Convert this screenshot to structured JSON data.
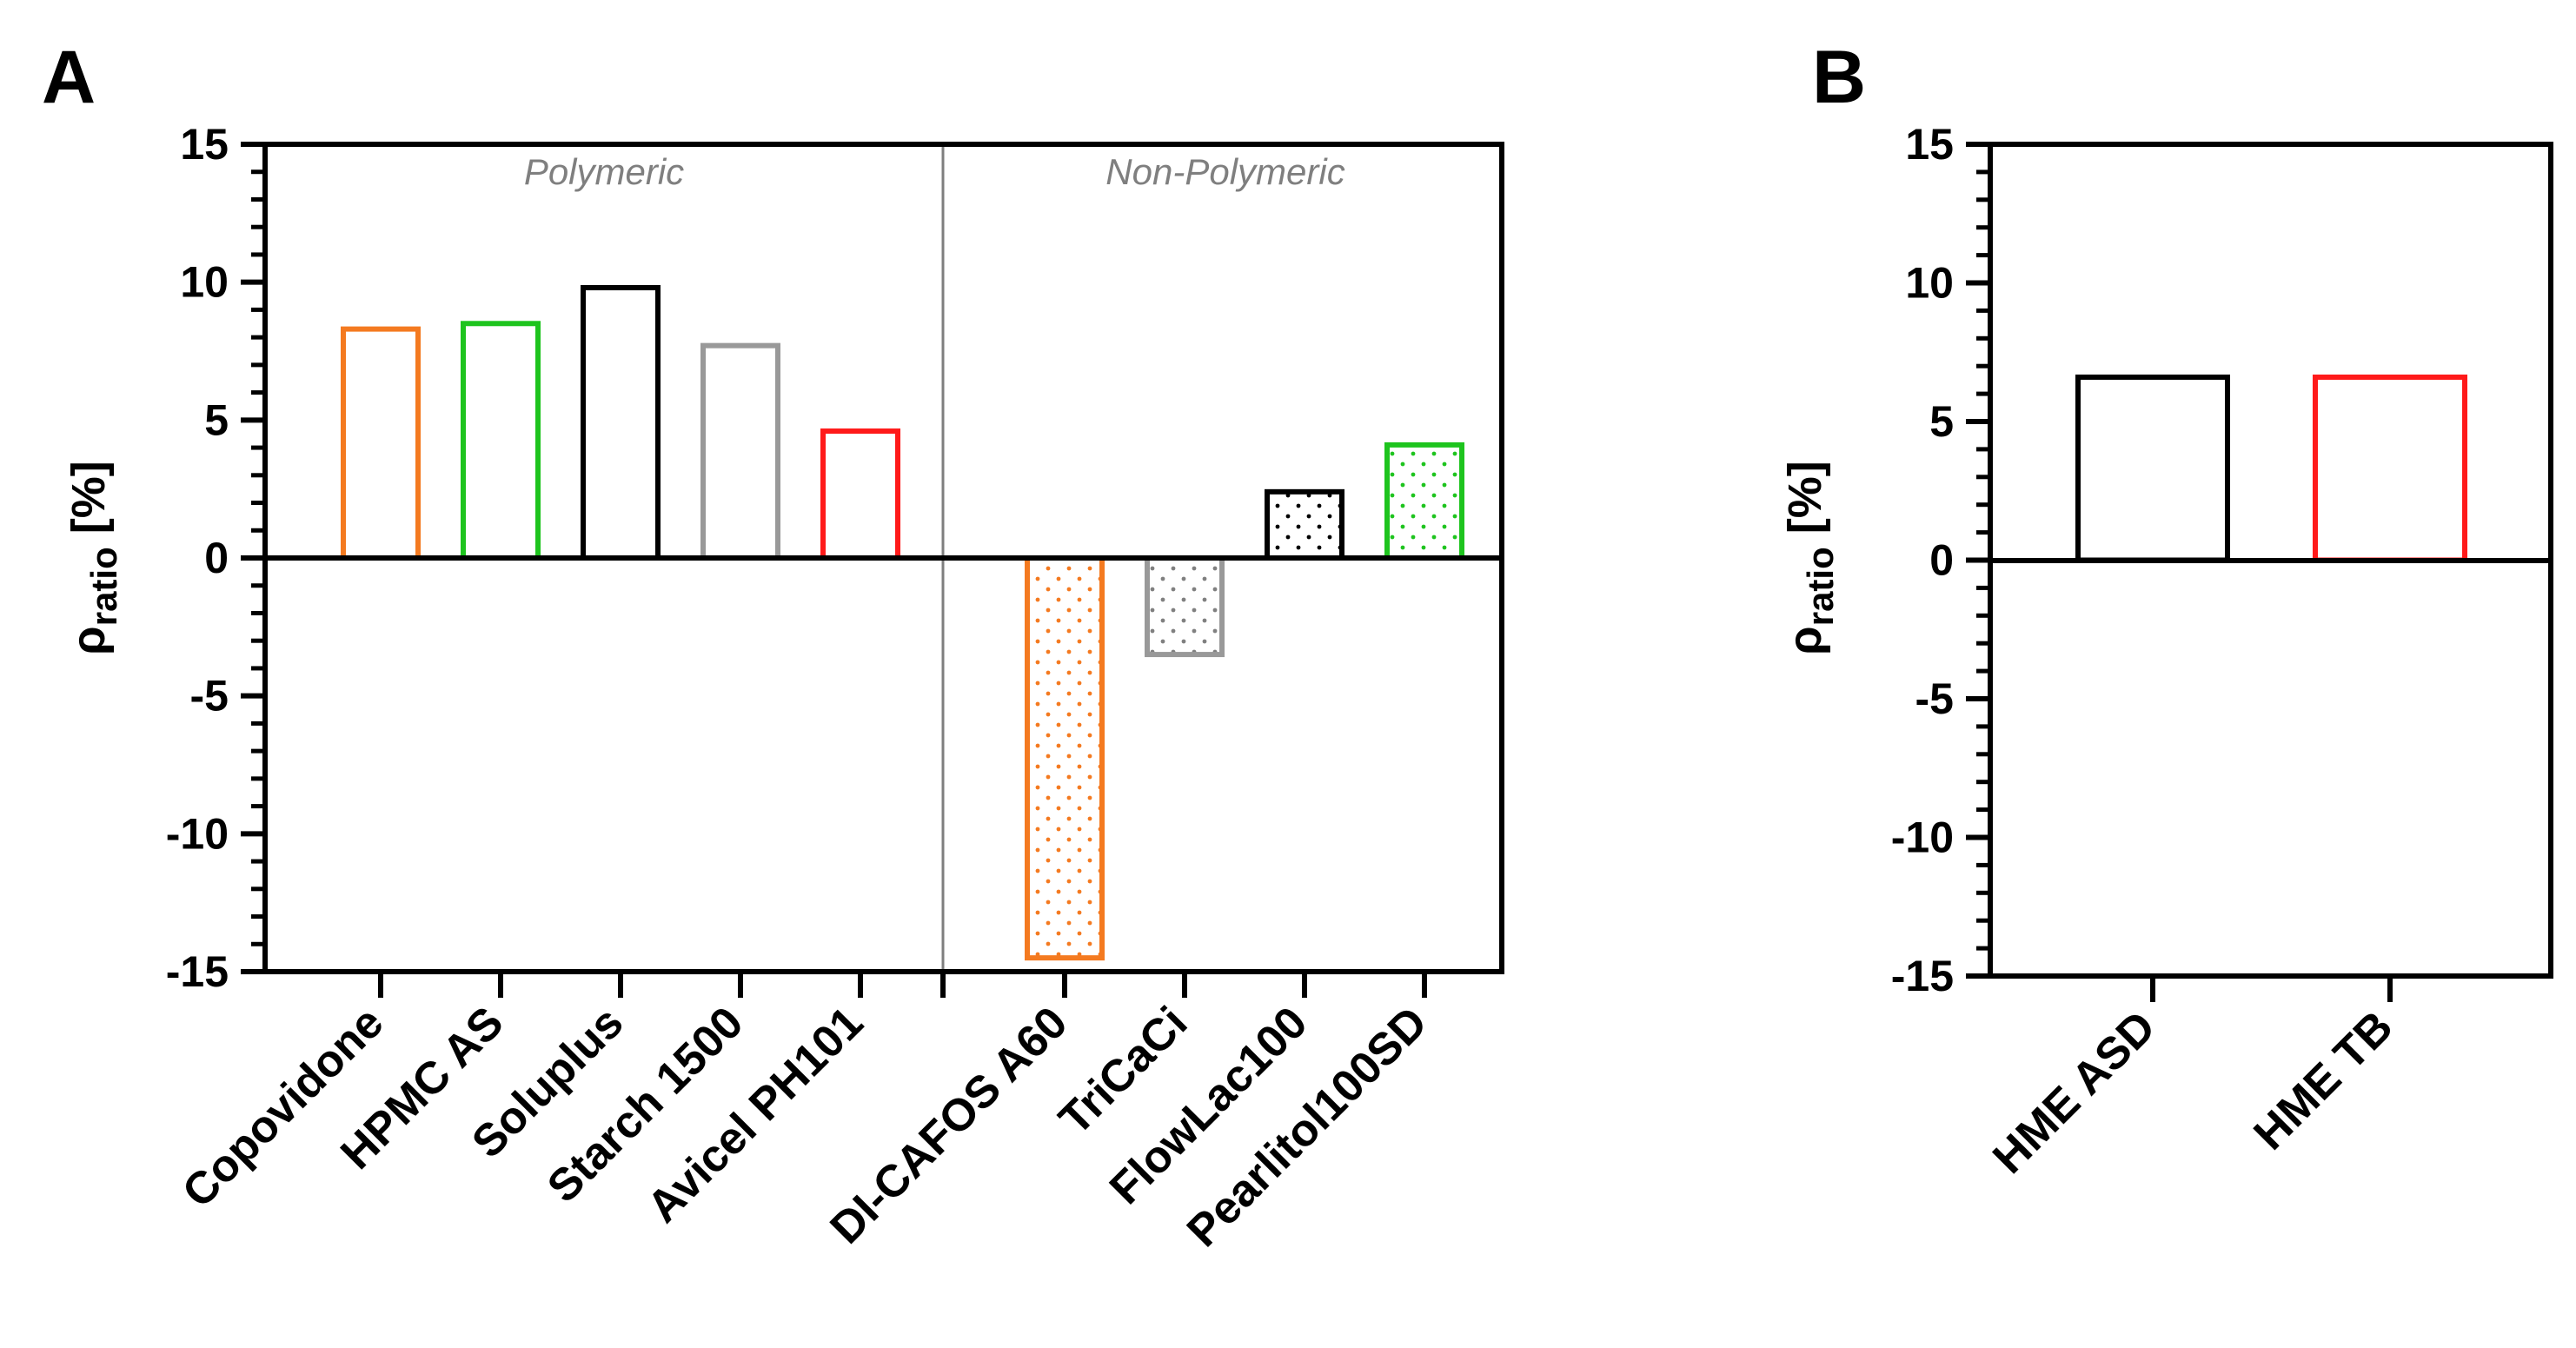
{
  "chart_data": [
    {
      "panel_label": "A",
      "type": "bar",
      "ylabel": {
        "main": "ρ",
        "sub": "ratio",
        "suffix": " [%]"
      },
      "ylim": [
        -15,
        15
      ],
      "yticks": [
        "-15",
        "-10",
        "-5",
        "0",
        "5",
        "10",
        "15"
      ],
      "grid": false,
      "groups": [
        {
          "label": "Polymeric",
          "categories": [
            "Copovidone",
            "HPMC AS",
            "Soluplus",
            "Starch 1500",
            "Avicel PH101"
          ]
        },
        {
          "label": "Non-Polymeric",
          "categories": [
            "DI-CAFOS A60",
            "TriCaCi",
            "FlowLac100",
            "Pearlitol100SD"
          ]
        }
      ],
      "categories": [
        "Copovidone",
        "HPMC AS",
        "Soluplus",
        "Starch 1500",
        "Avicel PH101",
        "DI-CAFOS A60",
        "TriCaCi",
        "FlowLac100",
        "Pearlitol100SD"
      ],
      "values": [
        8.3,
        8.5,
        9.8,
        7.7,
        4.6,
        -14.5,
        -3.5,
        2.4,
        4.1
      ],
      "colors": [
        "#f47a20",
        "#1ec41e",
        "#000000",
        "#999999",
        "#ff1a1a",
        "#f47a20",
        "#999999",
        "#000000",
        "#1ec41e"
      ],
      "patterns": [
        "none",
        "none",
        "none",
        "none",
        "none",
        "dots",
        "dots",
        "dots",
        "dots"
      ]
    },
    {
      "panel_label": "B",
      "type": "bar",
      "ylabel": {
        "main": "ρ",
        "sub": "ratio",
        "suffix": " [%]"
      },
      "ylim": [
        -15,
        15
      ],
      "yticks": [
        "-15",
        "-10",
        "-5",
        "0",
        "5",
        "10",
        "15"
      ],
      "grid": false,
      "categories": [
        "HME ASD",
        "HME TB"
      ],
      "values": [
        6.6,
        6.6
      ],
      "colors": [
        "#000000",
        "#ff1a1a"
      ],
      "patterns": [
        "none",
        "none"
      ]
    }
  ]
}
